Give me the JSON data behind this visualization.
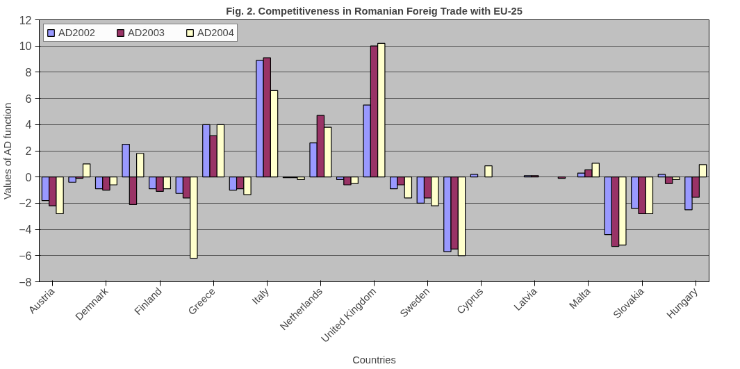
{
  "chart_data": {
    "type": "bar",
    "title": "Fig. 2. Competitiveness in Romanian Foreig Trade with EU-25",
    "xlabel": "Countries",
    "ylabel": "Values of AD function",
    "categories": [
      "Austria",
      null,
      "Demnark",
      null,
      "Finland",
      null,
      "Greece",
      null,
      "Italy",
      null,
      "Netherlands",
      null,
      "United Kingdom",
      null,
      "Sweden",
      null,
      "Cyprus",
      null,
      "Latvia",
      null,
      "Malta",
      null,
      "Slovakia",
      null,
      "Hungary"
    ],
    "series": [
      {
        "name": "AD2002",
        "color": "#9999ff",
        "values": [
          -1.8,
          -0.4,
          -0.9,
          2.5,
          -0.9,
          -1.25,
          4.0,
          -1.0,
          8.9,
          -0.05,
          2.6,
          -0.2,
          5.5,
          -0.9,
          -2.0,
          -5.7,
          0.2,
          null,
          0.1,
          null,
          0.3,
          -4.4,
          -2.4,
          0.2,
          -2.5
        ]
      },
      {
        "name": "AD2003",
        "color": "#993366",
        "values": [
          -2.2,
          -0.1,
          -1.0,
          -2.1,
          -1.1,
          -1.6,
          3.15,
          -0.9,
          9.1,
          -0.05,
          4.7,
          -0.6,
          10.0,
          -0.6,
          -1.6,
          -5.5,
          null,
          null,
          0.1,
          -0.1,
          0.55,
          -5.3,
          -2.8,
          -0.5,
          -1.55
        ]
      },
      {
        "name": "AD2004",
        "color": "#ffffcc",
        "values": [
          -2.8,
          1.0,
          -0.6,
          1.8,
          -0.9,
          -6.2,
          4.0,
          -1.35,
          6.6,
          -0.2,
          3.8,
          -0.5,
          10.2,
          -1.6,
          -2.2,
          -6.0,
          0.85,
          null,
          null,
          null,
          1.05,
          -5.2,
          -2.8,
          -0.2,
          0.95
        ]
      }
    ],
    "ylim": [
      -8,
      12
    ],
    "yticks": [
      -8,
      -6,
      -4,
      -2,
      0,
      2,
      4,
      6,
      8,
      10,
      12
    ],
    "grid": "y",
    "legend": "top left"
  }
}
